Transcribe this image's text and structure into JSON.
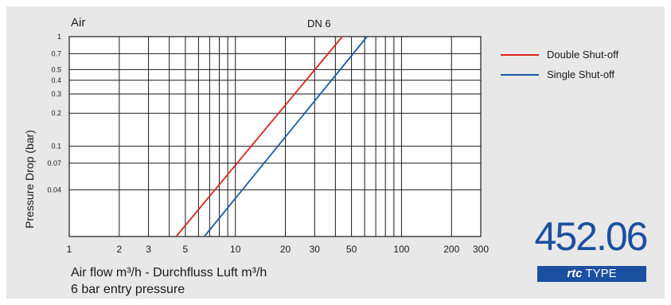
{
  "chart_data": {
    "type": "line",
    "title": "Air",
    "xlabel": "Air flow m³/h - Durchfluss Luft m³/h",
    "ylabel": "Pressure Drop (bar)",
    "subtitle": "6 bar entry pressure",
    "x_scale": "log",
    "y_scale": "log",
    "xlim": [
      1,
      300
    ],
    "ylim": [
      0.015,
      1
    ],
    "x_ticks": [
      1,
      2,
      3,
      5,
      10,
      20,
      30,
      50,
      100,
      200,
      300
    ],
    "x_tick_labels": [
      "1",
      "2",
      "3",
      "5",
      "10",
      "20",
      "30",
      "50",
      "100",
      "200",
      "300"
    ],
    "y_ticks": [
      1,
      0.7,
      0.5,
      0.4,
      0.3,
      0.2,
      0.1,
      0.07,
      0.04
    ],
    "y_tick_labels": [
      "1",
      "0.7",
      "0.5",
      "0.4",
      "0.3",
      "0.2",
      "0.1",
      "0.07",
      "0.04"
    ],
    "grid": true,
    "curve_label": "DN 6",
    "series": [
      {
        "name": "Double Shut-off",
        "color": "#d9261c",
        "x": [
          4.4,
          44
        ],
        "y": [
          0.015,
          1
        ]
      },
      {
        "name": "Single Shut-off",
        "color": "#1b5aa6",
        "x": [
          6.5,
          62
        ],
        "y": [
          0.015,
          1
        ]
      }
    ],
    "legend_position": "top-right"
  },
  "type_plate": {
    "number": "452.06",
    "brand": "rtc",
    "suffix": "TYPE"
  }
}
